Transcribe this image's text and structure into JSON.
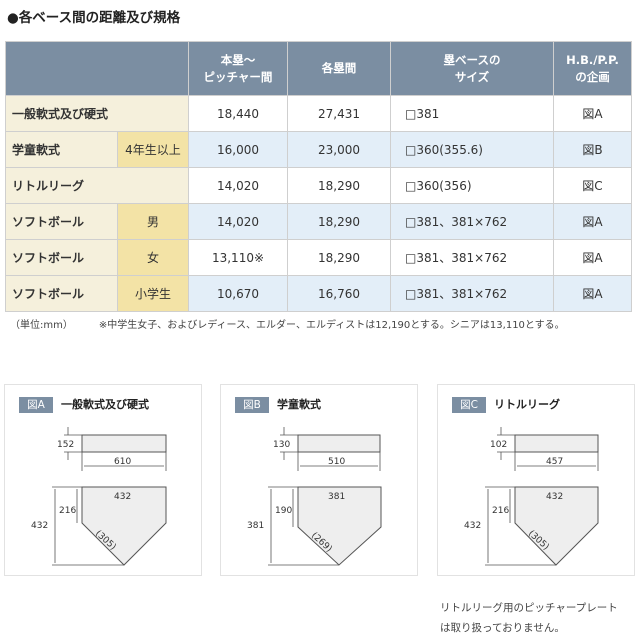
{
  "title": "●各ベース間の距離及び規格",
  "table": {
    "headers": {
      "pitch_line1": "本塁〜",
      "pitch_line2": "ピッチャー間",
      "base": "各塁間",
      "size_line1": "塁ベースの",
      "size_line2": "サイズ",
      "hbpp_line1": "H.B./P.P.",
      "hbpp_line2": "の企画"
    },
    "rows": [
      {
        "label": "一般軟式及び硬式",
        "sub": "",
        "pitch": "18,440",
        "base": "27,431",
        "size": "□381",
        "fig": "図A"
      },
      {
        "label": "学童軟式",
        "sub": "4年生以上",
        "pitch": "16,000",
        "base": "23,000",
        "size": "□360(355.6)",
        "fig": "図B"
      },
      {
        "label": "リトルリーグ",
        "sub": "",
        "pitch": "14,020",
        "base": "18,290",
        "size": "□360(356)",
        "fig": "図C"
      },
      {
        "label": "ソフトボール",
        "sub": "男",
        "pitch": "14,020",
        "base": "18,290",
        "size": "□381、381×762",
        "fig": "図A"
      },
      {
        "label": "ソフトボール",
        "sub": "女",
        "pitch": "13,110※",
        "base": "18,290",
        "size": "□381、381×762",
        "fig": "図A"
      },
      {
        "label": "ソフトボール",
        "sub": "小学生",
        "pitch": "10,670",
        "base": "16,760",
        "size": "□381、381×762",
        "fig": "図A"
      }
    ]
  },
  "note": {
    "unit": "（単位:mm）",
    "text": "※中学生女子、およびレディース、エルダー、エルディストは12,190とする。シニアは13,110とする。"
  },
  "figures": [
    {
      "badge": "図A",
      "title": "一般軟式及び硬式",
      "plate_h": "152",
      "plate_w": "610",
      "hp_width": "432",
      "hp_side": "216",
      "hp_total": "432",
      "hp_diag": "(305)"
    },
    {
      "badge": "図B",
      "title": "学童軟式",
      "plate_h": "130",
      "plate_w": "510",
      "hp_width": "381",
      "hp_side": "190",
      "hp_total": "381",
      "hp_diag": "(269)"
    },
    {
      "badge": "図C",
      "title": "リトルリーグ",
      "plate_h": "102",
      "plate_w": "457",
      "hp_width": "432",
      "hp_side": "216",
      "hp_total": "432",
      "hp_diag": "(305)"
    }
  ],
  "footnote": {
    "line1": "リトルリーグ用のピッチャープレート",
    "line2": "は取り扱っておりません。"
  },
  "colors": {
    "header_bg": "#7b8ea2",
    "label_bg": "#f5f0dc",
    "sub_bg": "#f3e3a6",
    "alt_row_bg": "#e3eef8"
  }
}
